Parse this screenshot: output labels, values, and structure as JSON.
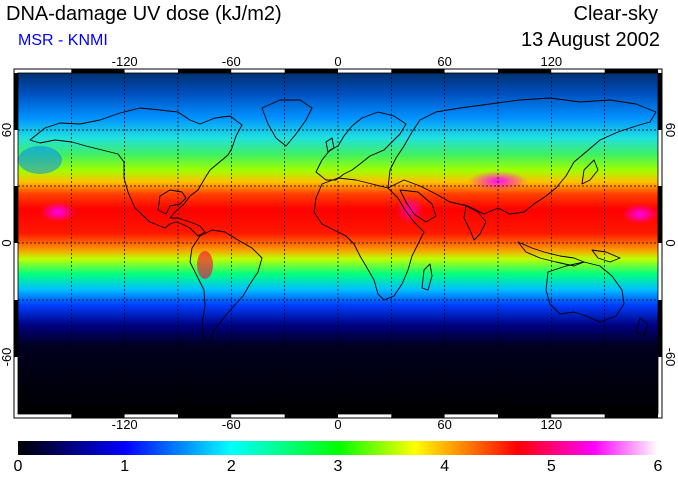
{
  "title": "DNA-damage UV dose (kJ/m2)",
  "subtitle": "MSR - KNMI",
  "condition": "Clear-sky",
  "date": "13 August 2002",
  "colors": {
    "subtitle": "#0000ff",
    "scale": [
      "#000000",
      "#0000ff",
      "#00ffff",
      "#00ff00",
      "#ffff00",
      "#ff0000",
      "#ff00ff",
      "#ffffff"
    ]
  },
  "map": {
    "projection": "equirectangular",
    "lon_range": [
      -180,
      180
    ],
    "lat_range": [
      -90,
      90
    ],
    "lon_ticks": [
      "-120",
      "-60",
      "0",
      "60",
      "120"
    ],
    "lat_ticks": [
      "60",
      "0",
      "-60"
    ],
    "grid": "dashed, every 30 degrees",
    "coastlines": true
  },
  "colorbar": {
    "min": 0,
    "max": 6,
    "labels": [
      "0",
      "1",
      "2",
      "3",
      "4",
      "5",
      "6"
    ]
  }
}
